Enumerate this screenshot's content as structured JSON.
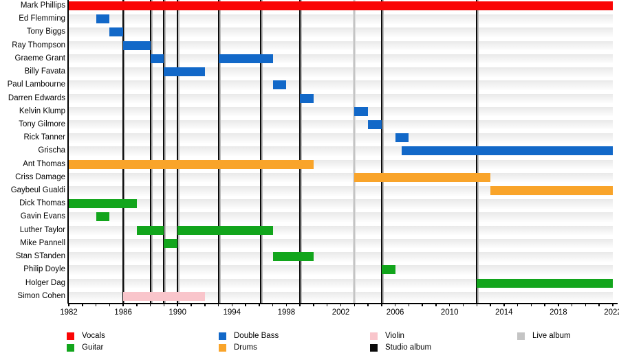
{
  "chart_data": {
    "type": "timeline",
    "description": "Band members timeline (gantt-style) with album release markers",
    "x_axis": {
      "start": 1982,
      "end": 2022,
      "tick_interval": 1,
      "label_interval": 4,
      "tick_labels": [
        "1982",
        "1986",
        "1990",
        "1994",
        "1998",
        "2002",
        "2006",
        "2010",
        "2014",
        "2018",
        "2022"
      ]
    },
    "colors": {
      "vocals": "#fa0505",
      "guitar": "#12a51c",
      "double_bass": "#1268c8",
      "drums": "#f9a42a",
      "violin": "#f9c5cb",
      "studio_album": "#0a0a0a",
      "live_album": "#c4c4c4"
    },
    "members": [
      {
        "name": "Mark Phillips",
        "instrument": "vocals",
        "periods": [
          [
            1982,
            2022
          ]
        ]
      },
      {
        "name": "Ed Flemming",
        "instrument": "double_bass",
        "periods": [
          [
            1984,
            1985
          ]
        ]
      },
      {
        "name": "Tony Biggs",
        "instrument": "double_bass",
        "periods": [
          [
            1985,
            1986
          ]
        ]
      },
      {
        "name": "Ray Thompson",
        "instrument": "double_bass",
        "periods": [
          [
            1986,
            1988
          ]
        ]
      },
      {
        "name": "Graeme Grant",
        "instrument": "double_bass",
        "periods": [
          [
            1988,
            1989
          ],
          [
            1993,
            1997
          ]
        ]
      },
      {
        "name": "Billy Favata",
        "instrument": "double_bass",
        "periods": [
          [
            1989,
            1992
          ]
        ]
      },
      {
        "name": "Paul Lambourne",
        "instrument": "double_bass",
        "periods": [
          [
            1997,
            1998
          ]
        ]
      },
      {
        "name": "Darren Edwards",
        "instrument": "double_bass",
        "periods": [
          [
            1999,
            2000
          ]
        ]
      },
      {
        "name": "Kelvin Klump",
        "instrument": "double_bass",
        "periods": [
          [
            2003,
            2004
          ]
        ]
      },
      {
        "name": "Tony Gilmore",
        "instrument": "double_bass",
        "periods": [
          [
            2004,
            2005
          ]
        ]
      },
      {
        "name": "Rick Tanner",
        "instrument": "double_bass",
        "periods": [
          [
            2006,
            2007
          ]
        ]
      },
      {
        "name": "Grischa",
        "instrument": "double_bass",
        "periods": [
          [
            2006.5,
            2022
          ]
        ]
      },
      {
        "name": "Ant Thomas",
        "instrument": "drums",
        "periods": [
          [
            1982,
            2000
          ]
        ]
      },
      {
        "name": "Criss Damage",
        "instrument": "drums",
        "periods": [
          [
            2003,
            2013
          ]
        ]
      },
      {
        "name": "Gaybeul Gualdi",
        "instrument": "drums",
        "periods": [
          [
            2013,
            2022
          ]
        ]
      },
      {
        "name": "Dick Thomas",
        "instrument": "guitar",
        "periods": [
          [
            1982,
            1987
          ]
        ]
      },
      {
        "name": "Gavin Evans",
        "instrument": "guitar",
        "periods": [
          [
            1984,
            1985
          ]
        ]
      },
      {
        "name": "Luther Taylor",
        "instrument": "guitar",
        "periods": [
          [
            1987,
            1989
          ],
          [
            1990,
            1997
          ]
        ]
      },
      {
        "name": "Mike Pannell",
        "instrument": "guitar",
        "periods": [
          [
            1989,
            1990
          ]
        ]
      },
      {
        "name": "Stan STanden",
        "instrument": "guitar",
        "periods": [
          [
            1997,
            2000
          ]
        ]
      },
      {
        "name": "Philip Doyle",
        "instrument": "guitar",
        "periods": [
          [
            2005,
            2006
          ]
        ]
      },
      {
        "name": "Holger Dag",
        "instrument": "guitar",
        "periods": [
          [
            2012,
            2022
          ]
        ]
      },
      {
        "name": "Simon Cohen",
        "instrument": "violin",
        "periods": [
          [
            1986,
            1992
          ]
        ]
      }
    ],
    "albums": {
      "studio": [
        1986,
        1988,
        1989,
        1990,
        1993,
        1996.1,
        1999,
        2005,
        2012
      ],
      "live": [
        2003
      ]
    },
    "legend": {
      "columns": [
        [
          {
            "label": "Vocals",
            "key": "vocals"
          },
          {
            "label": "Guitar",
            "key": "guitar"
          }
        ],
        [
          {
            "label": "Double Bass",
            "key": "double_bass"
          },
          {
            "label": "Drums",
            "key": "drums"
          }
        ],
        [
          {
            "label": "Violin",
            "key": "violin"
          },
          {
            "label": "Studio album",
            "key": "studio_album"
          }
        ],
        [
          {
            "label": "Live album",
            "key": "live_album"
          }
        ]
      ]
    }
  }
}
